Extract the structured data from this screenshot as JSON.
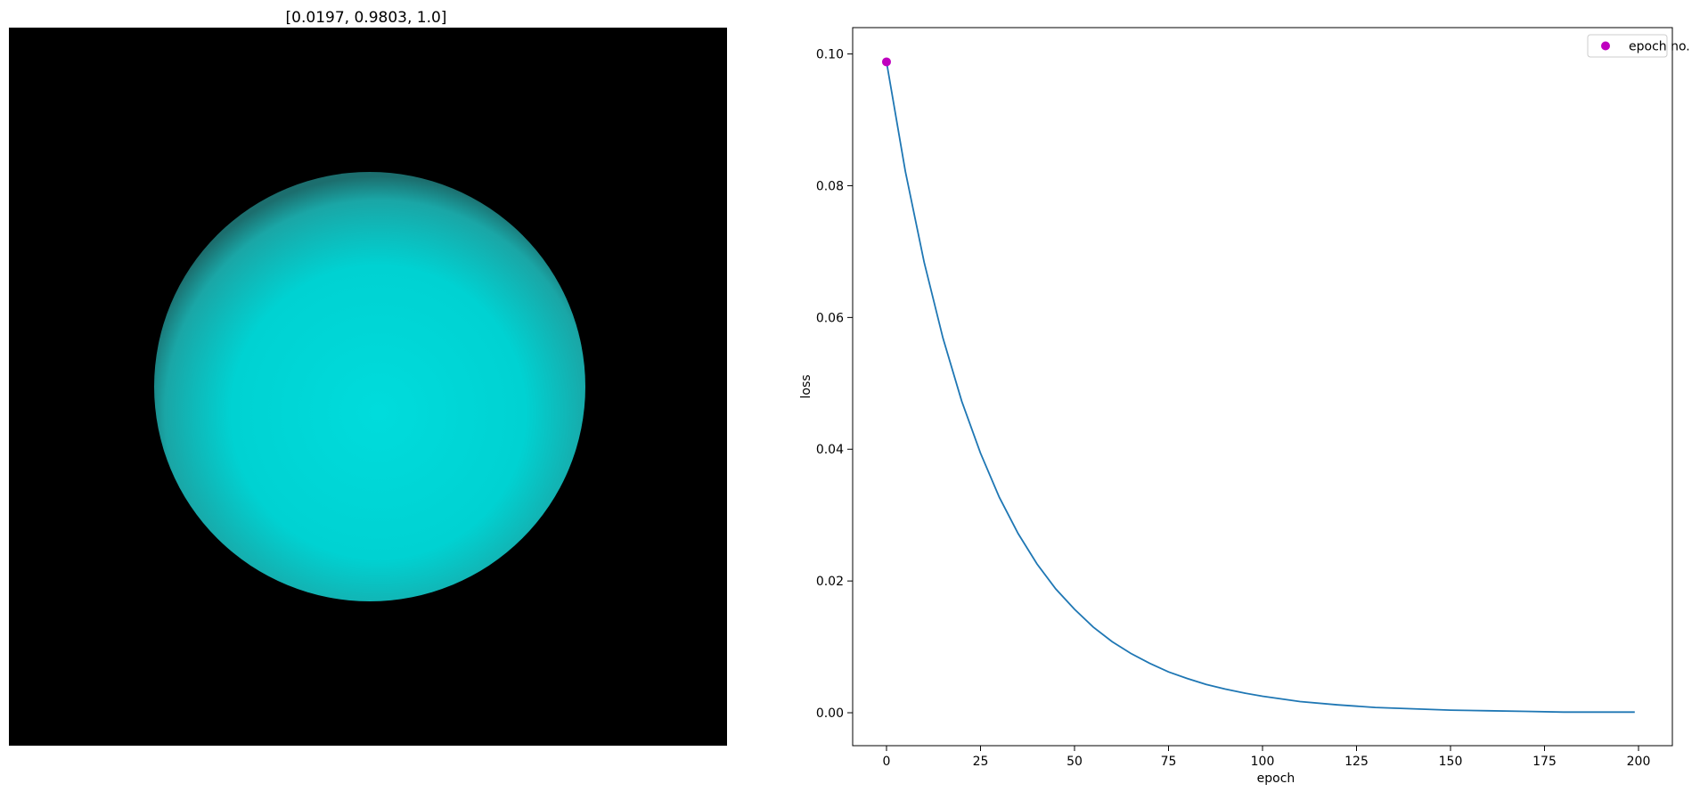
{
  "chart_data": [
    {
      "type": "image",
      "title": "[0.0197, 0.9803, 1.0]",
      "background_color": "#000000",
      "sphere_color": "#00dcdc"
    },
    {
      "type": "line",
      "title": "",
      "xlabel": "epoch",
      "ylabel": "loss",
      "xlim": [
        -9,
        209
      ],
      "ylim": [
        -0.005,
        0.104
      ],
      "x_ticks": [
        0,
        25,
        50,
        75,
        100,
        125,
        150,
        175,
        200
      ],
      "x_tick_labels": [
        "0",
        "25",
        "50",
        "75",
        "100",
        "125",
        "150",
        "175",
        "200"
      ],
      "y_ticks": [
        0.0,
        0.02,
        0.04,
        0.06,
        0.08,
        0.1
      ],
      "y_tick_labels": [
        "0.00",
        "0.02",
        "0.04",
        "0.06",
        "0.08",
        "0.10"
      ],
      "grid": false,
      "legend_position": "top-right",
      "series": [
        {
          "color": "#1f77b4",
          "x": [
            0,
            5,
            10,
            15,
            20,
            25,
            30,
            35,
            40,
            45,
            50,
            55,
            60,
            65,
            70,
            75,
            80,
            85,
            90,
            95,
            100,
            110,
            120,
            130,
            140,
            150,
            160,
            170,
            180,
            190,
            199
          ],
          "y": [
            0.0988,
            0.0822,
            0.0684,
            0.0569,
            0.0473,
            0.0394,
            0.0327,
            0.0272,
            0.0226,
            0.0188,
            0.0157,
            0.013,
            0.0108,
            0.009,
            0.0075,
            0.0062,
            0.0052,
            0.0043,
            0.0036,
            0.003,
            0.0025,
            0.0017,
            0.0012,
            0.0008,
            0.0006,
            0.0004,
            0.0003,
            0.0002,
            0.0001,
            0.0001,
            0.0001
          ]
        },
        {
          "name": "epoch no.",
          "color": "#bf00bf",
          "marker": "circle",
          "x": [
            0
          ],
          "y": [
            0.0988
          ]
        }
      ]
    }
  ]
}
